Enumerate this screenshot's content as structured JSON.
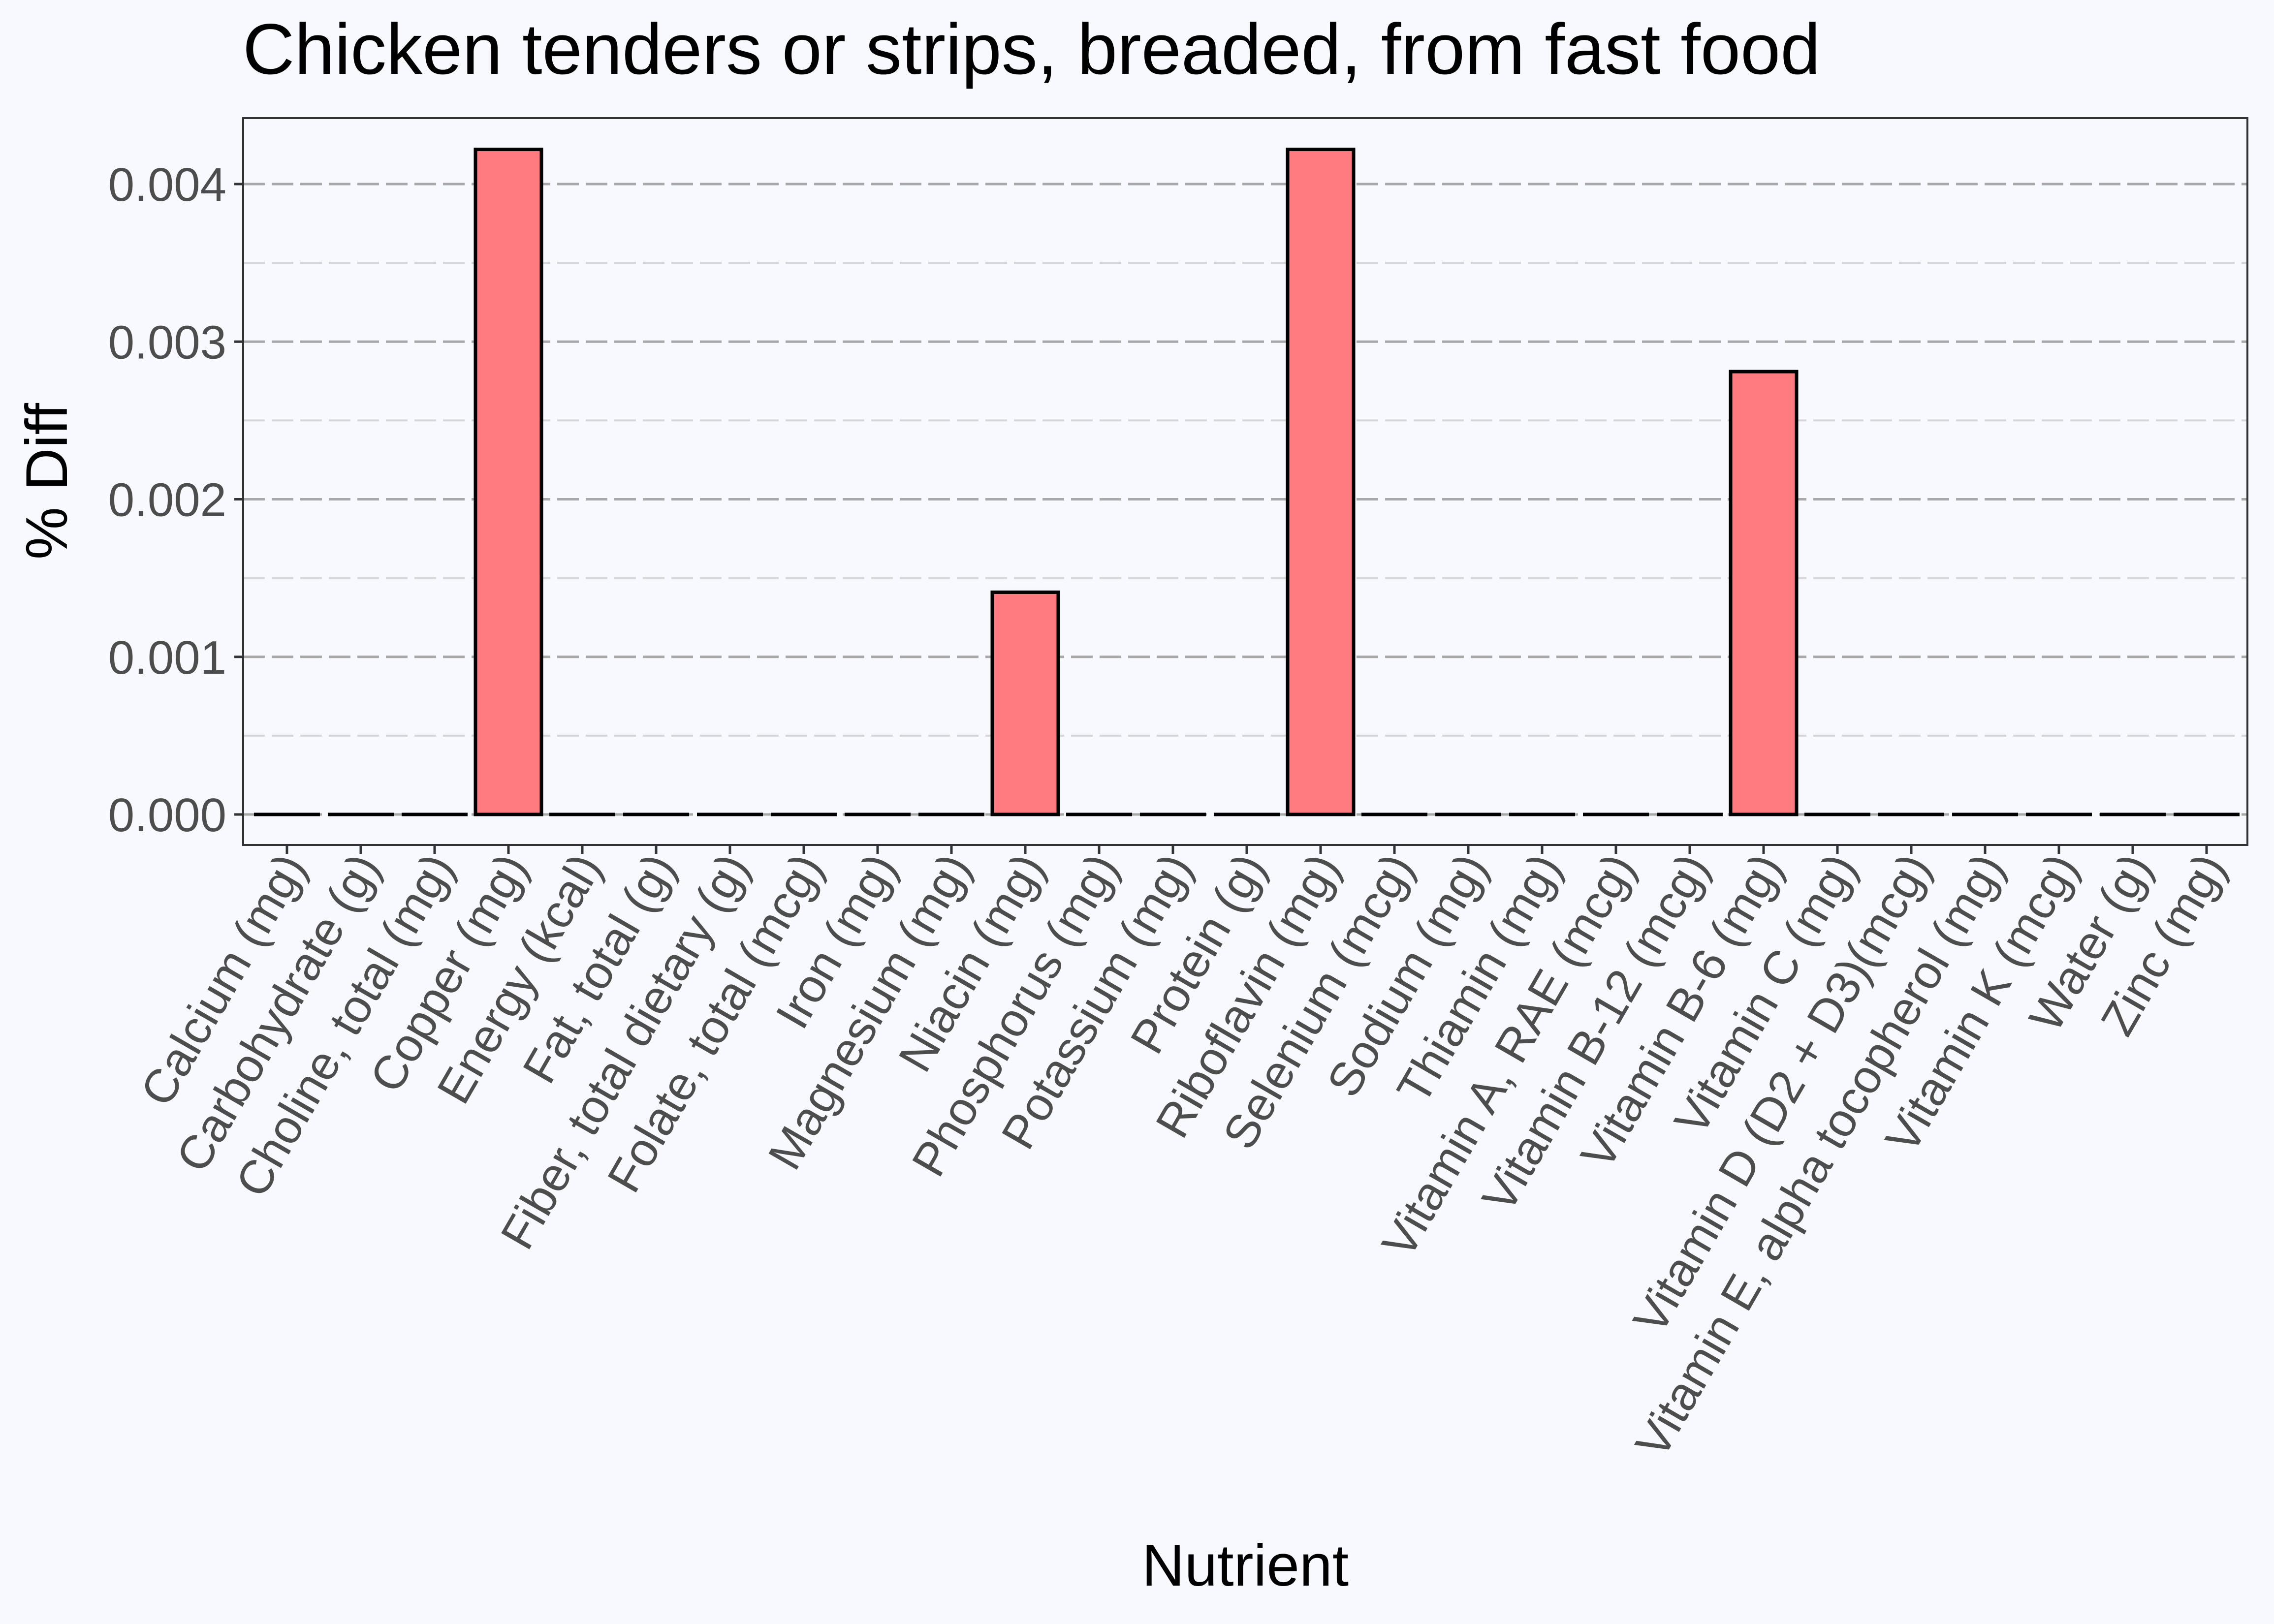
{
  "chart_data": {
    "type": "bar",
    "title": "Chicken tenders or strips, breaded, from fast food",
    "xlabel": "Nutrient",
    "ylabel": "% Diff",
    "categories": [
      "Calcium (mg)",
      "Carbohydrate (g)",
      "Choline, total (mg)",
      "Copper (mg)",
      "Energy (kcal)",
      "Fat, total (g)",
      "Fiber, total dietary (g)",
      "Folate, total (mcg)",
      "Iron (mg)",
      "Magnesium (mg)",
      "Niacin (mg)",
      "Phosphorus (mg)",
      "Potassium (mg)",
      "Protein (g)",
      "Riboflavin (mg)",
      "Selenium (mcg)",
      "Sodium (mg)",
      "Thiamin (mg)",
      "Vitamin A, RAE (mcg)",
      "Vitamin B-12 (mcg)",
      "Vitamin B-6 (mg)",
      "Vitamin C (mg)",
      "Vitamin D (D2 + D3)(mcg)",
      "Vitamin E, alpha tocopherol (mg)",
      "Vitamin K (mcg)",
      "Water (g)",
      "Zinc (mg)"
    ],
    "values": [
      0,
      0,
      0,
      0.00422,
      0,
      0,
      0,
      0,
      0,
      0,
      0.00141,
      0,
      0,
      0,
      0.00422,
      0,
      0,
      0,
      0,
      0,
      0.00281,
      0,
      0,
      0,
      0,
      0,
      0
    ],
    "yticks": [
      "0.000",
      "0.001",
      "0.002",
      "0.003",
      "0.004"
    ],
    "ylim": [
      -0.0002,
      0.0044
    ],
    "grid": true,
    "legend": "none",
    "colors": {
      "bar_fill": "#ff7b80",
      "bar_stroke": "#000000",
      "panel_bg": "#f8f9fe",
      "grid_major": "#a8a8a8",
      "grid_minor": "#d6d6d6",
      "tick_text": "#4d4d4d"
    }
  }
}
